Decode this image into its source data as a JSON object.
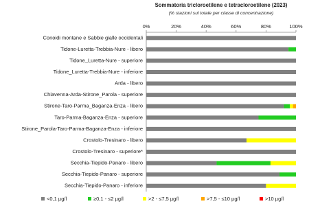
{
  "chart_data": {
    "type": "bar",
    "orientation": "horizontal",
    "stacked": true,
    "title": "Sommatoria tricloroetilene e tetracloroetilene (2023)",
    "subtitle": "(% stazioni sul totale per classe di concentrazione)",
    "categories": [
      "Conoidi montane e Sabbie gialle occidentali",
      "Tidone-Luretta-Trebbia-Nure - libero",
      "Tidone_Luretta-Nure - superiore",
      "Tidone_Luretta-Trebbia-Nure - inferiore",
      "Arda - libero",
      "Chiavenna-Arda-Stirone_Parola - superiore",
      "Stirone-Taro-Parma_Baganza-Enza - libero",
      "Taro-Parma-Baganza-Enza - superiore",
      "Stirone_Parola-Taro-Parma-Baganza-Enza - inferiore",
      "Crostolo-Tresinaro - libero",
      "Crostolo-Tresinaro - superiore*",
      "Secchia-Tiepido-Panaro - libero",
      "Secchia-Tiepido-Panaro - superiore",
      "Secchia-Tiepido-Panaro - inferiore"
    ],
    "series": [
      {
        "name": "<0,1 µg/l",
        "color": "#808080",
        "values": [
          100,
          95,
          100,
          100,
          100,
          100,
          92,
          75,
          100,
          67,
          100,
          47,
          89,
          80
        ]
      },
      {
        "name": "≥0,1 - ≤2 µg/l",
        "color": "#22cc22",
        "values": [
          0,
          5,
          0,
          0,
          0,
          0,
          4,
          25,
          0,
          0,
          0,
          36,
          11,
          0
        ]
      },
      {
        "name": ">2 - ≤7,5 µg/l",
        "color": "#ffff00",
        "values": [
          0,
          0,
          0,
          0,
          0,
          0,
          2,
          0,
          0,
          33,
          0,
          17,
          0,
          20
        ]
      },
      {
        "name": ">7,5 - ≤10 µg/l",
        "color": "#ffa500",
        "values": [
          0,
          0,
          0,
          0,
          0,
          0,
          2,
          0,
          0,
          0,
          0,
          0,
          0,
          0
        ]
      },
      {
        "name": ">10 µg/l",
        "color": "#ff0000",
        "values": [
          0,
          0,
          0,
          0,
          0,
          0,
          0,
          0,
          0,
          0,
          0,
          0,
          0,
          0
        ]
      }
    ],
    "xlim": [
      0,
      100
    ],
    "xticks": [
      {
        "value": 0,
        "label": "0%"
      },
      {
        "value": 20,
        "label": "20%"
      },
      {
        "value": 40,
        "label": "40%"
      },
      {
        "value": 60,
        "label": "60%"
      },
      {
        "value": 80,
        "label": "80%"
      },
      {
        "value": 100,
        "label": "100%"
      }
    ],
    "legend": "bottom"
  }
}
